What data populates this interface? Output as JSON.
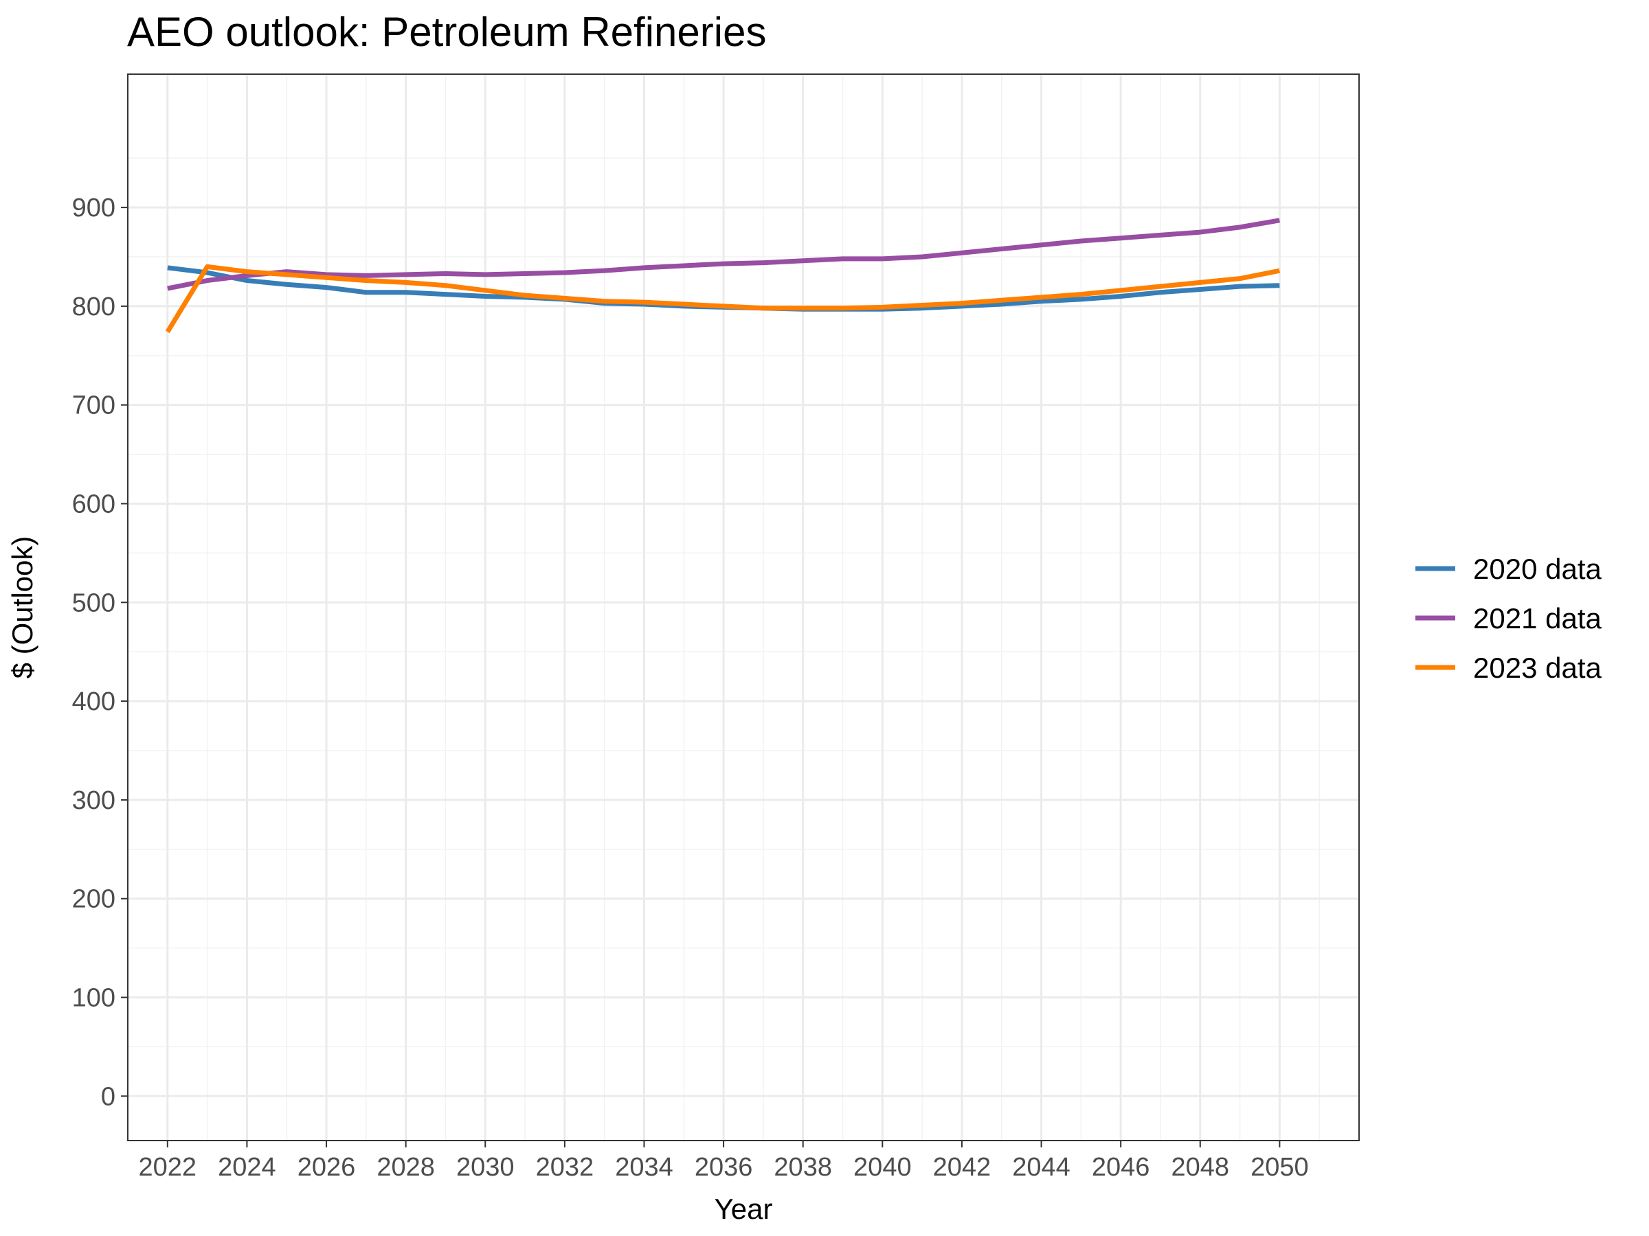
{
  "chart_data": {
    "type": "line",
    "title": "AEO outlook: Petroleum Refineries",
    "xlabel": "Year",
    "ylabel": "$ (Outlook)",
    "x": [
      2022,
      2023,
      2024,
      2025,
      2026,
      2027,
      2028,
      2029,
      2030,
      2031,
      2032,
      2033,
      2034,
      2035,
      2036,
      2037,
      2038,
      2039,
      2040,
      2041,
      2042,
      2043,
      2044,
      2045,
      2046,
      2047,
      2048,
      2049,
      2050
    ],
    "xticks": [
      "2022",
      "2024",
      "2026",
      "2028",
      "2030",
      "2032",
      "2034",
      "2036",
      "2038",
      "2040",
      "2042",
      "2044",
      "2046",
      "2048",
      "2050"
    ],
    "yticks": [
      "0",
      "100",
      "200",
      "300",
      "400",
      "500",
      "600",
      "700",
      "800",
      "900"
    ],
    "xlim": [
      2021,
      2052
    ],
    "ylim": [
      -45,
      1035
    ],
    "grid": true,
    "legend_position": "right",
    "series": [
      {
        "name": "2020 data",
        "color": "#377eb8",
        "values": [
          839,
          834,
          826,
          822,
          819,
          814,
          814,
          812,
          810,
          809,
          807,
          803,
          802,
          800,
          799,
          798,
          797,
          797,
          797,
          798,
          800,
          802,
          805,
          807,
          810,
          814,
          817,
          820,
          821
        ]
      },
      {
        "name": "2021 data",
        "color": "#984ea3",
        "values": [
          818,
          826,
          831,
          835,
          832,
          831,
          832,
          833,
          832,
          833,
          834,
          836,
          839,
          841,
          843,
          844,
          846,
          848,
          848,
          850,
          854,
          858,
          862,
          866,
          869,
          872,
          875,
          880,
          887
        ]
      },
      {
        "name": "2023 data",
        "color": "#ff7f00",
        "values": [
          774,
          840,
          835,
          832,
          829,
          826,
          824,
          821,
          816,
          811,
          808,
          805,
          804,
          802,
          800,
          798,
          798,
          798,
          799,
          801,
          803,
          806,
          809,
          812,
          816,
          820,
          824,
          828,
          836
        ]
      }
    ]
  }
}
